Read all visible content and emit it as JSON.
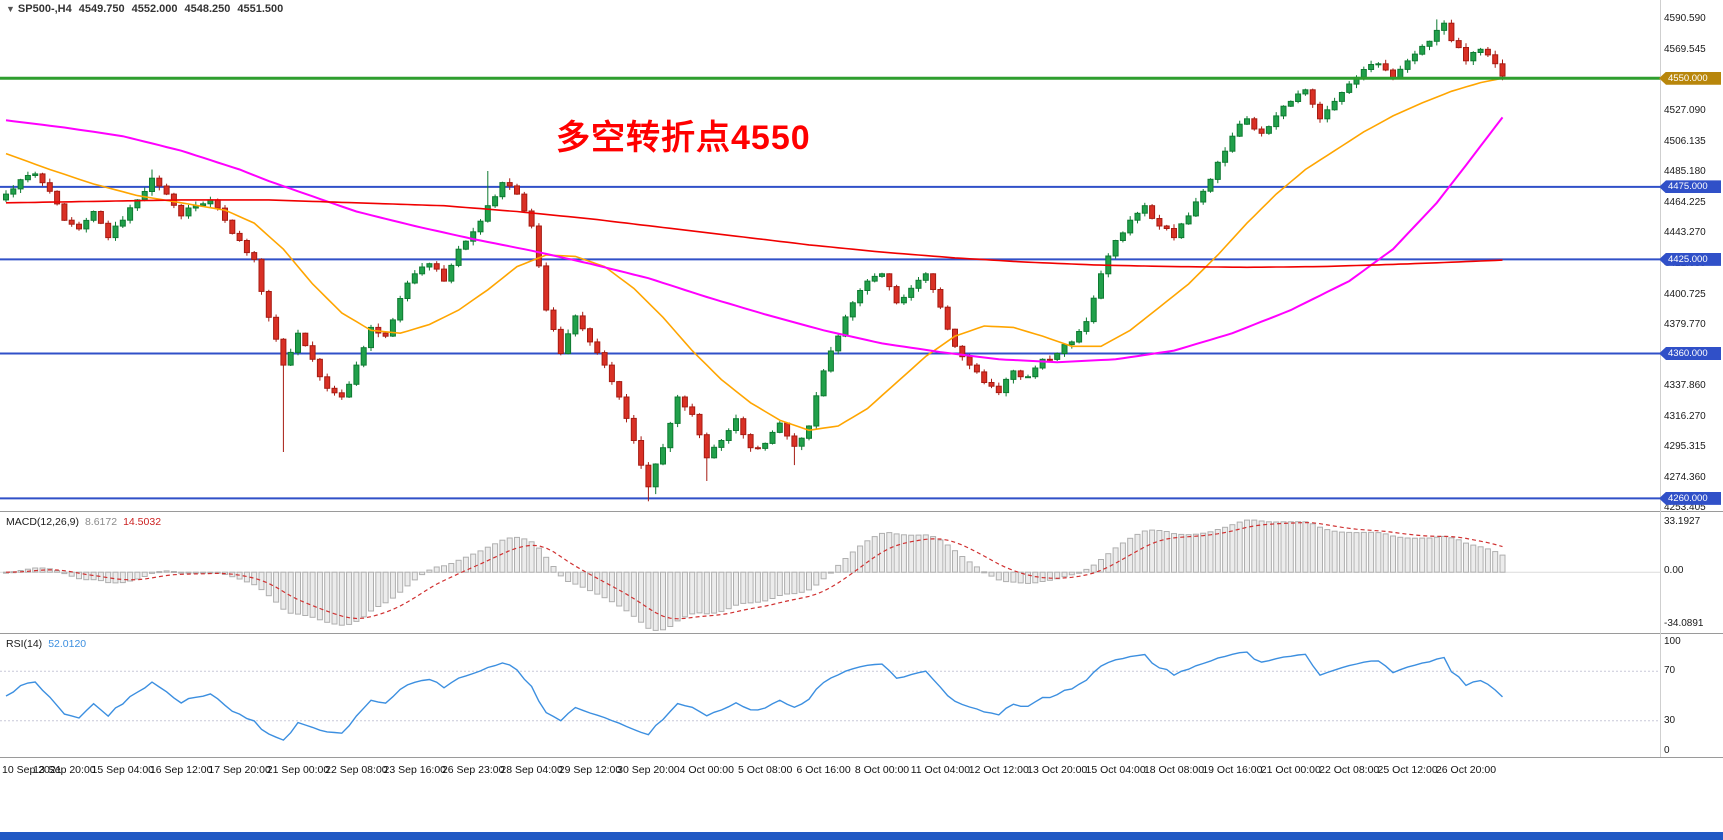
{
  "header": {
    "symbol_marker": "▼",
    "symbol": "SP500-,H4",
    "open": "4549.750",
    "high": "4552.000",
    "low": "4548.250",
    "close": "4551.500"
  },
  "annotation": {
    "text": "多空转折点4550",
    "color": "#FF0000"
  },
  "price_axis": {
    "ticks": [
      "4590.590",
      "4569.545",
      "4548.500",
      "4527.090",
      "4506.135",
      "4485.180",
      "4464.225",
      "4443.270",
      "4421.680",
      "4400.725",
      "4379.770",
      "4358.815",
      "4337.860",
      "4316.270",
      "4295.315",
      "4274.360",
      "4253.405"
    ]
  },
  "hlines": [
    {
      "price": 4550,
      "label": "4550.000",
      "line_color": "#2E9E2E",
      "label_bg": "#B8860B",
      "width": 3
    },
    {
      "price": 4475,
      "label": "4475.000",
      "line_color": "#3050C8",
      "label_bg": "#3050C8",
      "width": 2
    },
    {
      "price": 4425,
      "label": "4425.000",
      "line_color": "#3050C8",
      "label_bg": "#3050C8",
      "width": 2
    },
    {
      "price": 4360,
      "label": "4360.000",
      "line_color": "#3050C8",
      "label_bg": "#3050C8",
      "width": 2
    },
    {
      "price": 4260,
      "label": "4260.000",
      "line_color": "#3050C8",
      "label_bg": "#3050C8",
      "width": 2
    }
  ],
  "time_axis": {
    "labels": [
      "10 Sep 2021",
      "13 Sep 20:00",
      "15 Sep 04:00",
      "16 Sep 12:00",
      "17 Sep 20:00",
      "21 Sep 00:00",
      "22 Sep 08:00",
      "23 Sep 16:00",
      "26 Sep 23:00",
      "28 Sep 04:00",
      "29 Sep 12:00",
      "30 Sep 20:00",
      "4 Oct 00:00",
      "5 Oct 08:00",
      "6 Oct 16:00",
      "8 Oct 00:00",
      "11 Oct 04:00",
      "12 Oct 12:00",
      "13 Oct 20:00",
      "15 Oct 04:00",
      "18 Oct 08:00",
      "19 Oct 16:00",
      "21 Oct 00:00",
      "22 Oct 08:00",
      "25 Oct 12:00",
      "26 Oct 20:00"
    ]
  },
  "indicators": {
    "macd": {
      "name": "MACD(12,26,9)",
      "main_value": "8.6172",
      "signal_value": "14.5032",
      "axis_max": "33.1927",
      "axis_zero": "0.00",
      "axis_min": "-34.0891",
      "histogram_fill": "#ECECEC",
      "histogram_stroke": "#AFAFAF",
      "signal_color": "#D03030"
    },
    "rsi": {
      "name": "RSI(14)",
      "value": "52.0120",
      "axis": [
        "100",
        "70",
        "30",
        "0"
      ],
      "levels": [
        70,
        30
      ],
      "line_color": "#3C8FE0"
    }
  },
  "colors": {
    "background": "#FFFFFF",
    "panel_border": "#9A9A9A",
    "axis_text": "#1A1A1A",
    "taskbar": "#2159C4"
  },
  "chart_data": {
    "type": "candlestick",
    "symbol": "SP500",
    "timeframe": "H4",
    "title": "SP500-,H4 4549.750 4552.000 4548.250 4551.500",
    "bars": 206,
    "price_axis_range": [
      4252,
      4604
    ],
    "last_close": 4551.5,
    "up_color": "#21A04B",
    "up_stroke": "#0E7A31",
    "down_color": "#D93025",
    "down_stroke": "#A61B12",
    "hline_levels": [
      4550,
      4475,
      4425,
      4360,
      4260
    ],
    "close_waypoints": [
      [
        0,
        4470
      ],
      [
        2,
        4480
      ],
      [
        4,
        4484
      ],
      [
        6,
        4472
      ],
      [
        8,
        4452
      ],
      [
        10,
        4446
      ],
      [
        12,
        4458
      ],
      [
        14,
        4440
      ],
      [
        16,
        4452
      ],
      [
        18,
        4466
      ],
      [
        20,
        4481
      ],
      [
        22,
        4470
      ],
      [
        24,
        4455
      ],
      [
        26,
        4462
      ],
      [
        28,
        4466
      ],
      [
        30,
        4452
      ],
      [
        32,
        4438
      ],
      [
        34,
        4425
      ],
      [
        36,
        4385
      ],
      [
        38,
        4352
      ],
      [
        40,
        4374
      ],
      [
        42,
        4356
      ],
      [
        44,
        4336
      ],
      [
        46,
        4330
      ],
      [
        48,
        4352
      ],
      [
        50,
        4378
      ],
      [
        52,
        4372
      ],
      [
        54,
        4398
      ],
      [
        56,
        4415
      ],
      [
        58,
        4422
      ],
      [
        60,
        4410
      ],
      [
        62,
        4432
      ],
      [
        64,
        4444
      ],
      [
        66,
        4462
      ],
      [
        68,
        4478
      ],
      [
        70,
        4470
      ],
      [
        72,
        4448
      ],
      [
        74,
        4390
      ],
      [
        76,
        4360
      ],
      [
        78,
        4386
      ],
      [
        80,
        4368
      ],
      [
        82,
        4352
      ],
      [
        84,
        4330
      ],
      [
        86,
        4300
      ],
      [
        88,
        4268
      ],
      [
        90,
        4295
      ],
      [
        92,
        4330
      ],
      [
        94,
        4318
      ],
      [
        96,
        4288
      ],
      [
        98,
        4300
      ],
      [
        100,
        4315
      ],
      [
        102,
        4295
      ],
      [
        104,
        4298
      ],
      [
        106,
        4312
      ],
      [
        108,
        4296
      ],
      [
        110,
        4310
      ],
      [
        112,
        4348
      ],
      [
        114,
        4372
      ],
      [
        116,
        4395
      ],
      [
        118,
        4410
      ],
      [
        120,
        4415
      ],
      [
        122,
        4395
      ],
      [
        124,
        4405
      ],
      [
        126,
        4415
      ],
      [
        128,
        4392
      ],
      [
        130,
        4365
      ],
      [
        132,
        4352
      ],
      [
        134,
        4340
      ],
      [
        136,
        4333
      ],
      [
        138,
        4348
      ],
      [
        140,
        4344
      ],
      [
        142,
        4356
      ],
      [
        144,
        4360
      ],
      [
        146,
        4368
      ],
      [
        148,
        4382
      ],
      [
        150,
        4415
      ],
      [
        152,
        4438
      ],
      [
        154,
        4452
      ],
      [
        156,
        4462
      ],
      [
        158,
        4448
      ],
      [
        160,
        4440
      ],
      [
        162,
        4455
      ],
      [
        164,
        4472
      ],
      [
        166,
        4492
      ],
      [
        168,
        4510
      ],
      [
        170,
        4522
      ],
      [
        172,
        4512
      ],
      [
        174,
        4524
      ],
      [
        176,
        4534
      ],
      [
        178,
        4542
      ],
      [
        180,
        4522
      ],
      [
        182,
        4534
      ],
      [
        184,
        4546
      ],
      [
        186,
        4556
      ],
      [
        188,
        4560
      ],
      [
        190,
        4550
      ],
      [
        192,
        4562
      ],
      [
        194,
        4572
      ],
      [
        196,
        4583
      ],
      [
        197,
        4588
      ],
      [
        198,
        4576
      ],
      [
        200,
        4562
      ],
      [
        202,
        4570
      ],
      [
        204,
        4560
      ],
      [
        205,
        4551.5
      ]
    ],
    "wick_extremes": [
      {
        "i": 20,
        "side": "high",
        "price": 4487
      },
      {
        "i": 38,
        "side": "low",
        "price": 4292
      },
      {
        "i": 66,
        "side": "high",
        "price": 4486
      },
      {
        "i": 88,
        "side": "low",
        "price": 4258
      },
      {
        "i": 89,
        "side": "low",
        "price": 4263
      },
      {
        "i": 96,
        "side": "low",
        "price": 4272
      },
      {
        "i": 108,
        "side": "low",
        "price": 4283
      },
      {
        "i": 196,
        "side": "high",
        "price": 4590.59
      },
      {
        "i": 197,
        "side": "high",
        "price": 4589
      }
    ],
    "moving_averages": [
      {
        "name": "ma-fast-orange",
        "color": "#FFA500",
        "width": 1.6,
        "points": [
          [
            0,
            4498
          ],
          [
            6,
            4487
          ],
          [
            12,
            4477
          ],
          [
            18,
            4469
          ],
          [
            24,
            4464
          ],
          [
            30,
            4459
          ],
          [
            34,
            4450
          ],
          [
            38,
            4432
          ],
          [
            42,
            4408
          ],
          [
            46,
            4388
          ],
          [
            50,
            4376
          ],
          [
            54,
            4374
          ],
          [
            58,
            4380
          ],
          [
            62,
            4390
          ],
          [
            66,
            4404
          ],
          [
            70,
            4420
          ],
          [
            74,
            4428
          ],
          [
            78,
            4427
          ],
          [
            82,
            4420
          ],
          [
            86,
            4405
          ],
          [
            90,
            4385
          ],
          [
            94,
            4362
          ],
          [
            98,
            4342
          ],
          [
            102,
            4326
          ],
          [
            106,
            4314
          ],
          [
            110,
            4307
          ],
          [
            114,
            4310
          ],
          [
            118,
            4322
          ],
          [
            122,
            4340
          ],
          [
            126,
            4358
          ],
          [
            130,
            4372
          ],
          [
            134,
            4379
          ],
          [
            138,
            4378
          ],
          [
            142,
            4372
          ],
          [
            146,
            4365
          ],
          [
            150,
            4365
          ],
          [
            154,
            4376
          ],
          [
            158,
            4392
          ],
          [
            162,
            4408
          ],
          [
            166,
            4428
          ],
          [
            170,
            4450
          ],
          [
            174,
            4470
          ],
          [
            178,
            4487
          ],
          [
            182,
            4500
          ],
          [
            186,
            4513
          ],
          [
            190,
            4524
          ],
          [
            194,
            4533
          ],
          [
            198,
            4541
          ],
          [
            202,
            4547
          ],
          [
            205,
            4550
          ]
        ]
      },
      {
        "name": "ma-mid-magenta",
        "color": "#FF00FF",
        "width": 2,
        "points": [
          [
            0,
            4521
          ],
          [
            8,
            4516
          ],
          [
            16,
            4510
          ],
          [
            24,
            4500
          ],
          [
            32,
            4487
          ],
          [
            36,
            4479
          ],
          [
            40,
            4472
          ],
          [
            48,
            4458
          ],
          [
            56,
            4448
          ],
          [
            64,
            4439
          ],
          [
            72,
            4431
          ],
          [
            80,
            4422
          ],
          [
            88,
            4412
          ],
          [
            96,
            4399
          ],
          [
            104,
            4387
          ],
          [
            112,
            4376
          ],
          [
            120,
            4367
          ],
          [
            128,
            4361
          ],
          [
            136,
            4356
          ],
          [
            144,
            4354
          ],
          [
            152,
            4356
          ],
          [
            160,
            4362
          ],
          [
            168,
            4374
          ],
          [
            176,
            4390
          ],
          [
            184,
            4410
          ],
          [
            190,
            4432
          ],
          [
            196,
            4464
          ],
          [
            200,
            4490
          ],
          [
            205,
            4523
          ]
        ]
      },
      {
        "name": "ma-slow-red",
        "color": "#F00000",
        "width": 1.6,
        "points": [
          [
            0,
            4464
          ],
          [
            12,
            4465
          ],
          [
            24,
            4466
          ],
          [
            36,
            4466
          ],
          [
            48,
            4464
          ],
          [
            60,
            4462
          ],
          [
            70,
            4458
          ],
          [
            80,
            4453
          ],
          [
            90,
            4447
          ],
          [
            100,
            4441
          ],
          [
            110,
            4435
          ],
          [
            120,
            4430
          ],
          [
            130,
            4426
          ],
          [
            140,
            4423
          ],
          [
            150,
            4421
          ],
          [
            160,
            4420
          ],
          [
            170,
            4419.5
          ],
          [
            180,
            4420
          ],
          [
            190,
            4421.5
          ],
          [
            198,
            4423
          ],
          [
            205,
            4424.5
          ]
        ]
      }
    ]
  }
}
